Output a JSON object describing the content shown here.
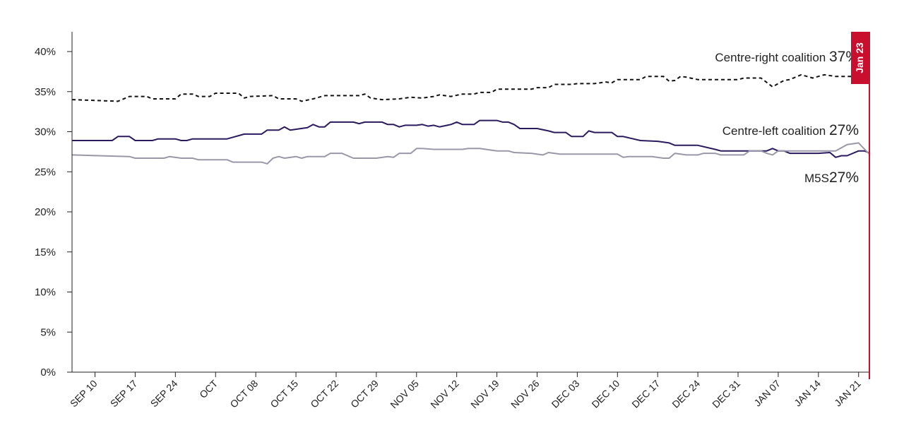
{
  "chart_data": {
    "type": "line",
    "xlabel": "",
    "ylabel": "",
    "ylim": [
      0,
      42
    ],
    "y_ticks": [
      0,
      5,
      10,
      15,
      20,
      25,
      30,
      35,
      40
    ],
    "y_tick_labels": [
      "0%",
      "5%",
      "10%",
      "15%",
      "20%",
      "25%",
      "30%",
      "35%",
      "40%"
    ],
    "x_range": [
      "2017-09-06",
      "2018-01-23"
    ],
    "x_ticks": [
      {
        "date": "2017-09-10",
        "label": "SEP 10"
      },
      {
        "date": "2017-09-17",
        "label": "SEP 17"
      },
      {
        "date": "2017-09-24",
        "label": "SEP 24"
      },
      {
        "date": "2017-10-01",
        "label": "OCT"
      },
      {
        "date": "2017-10-08",
        "label": "OCT 08"
      },
      {
        "date": "2017-10-15",
        "label": "OCT 15"
      },
      {
        "date": "2017-10-22",
        "label": "OCT 22"
      },
      {
        "date": "2017-10-29",
        "label": "OCT 29"
      },
      {
        "date": "2017-11-05",
        "label": "NOV 05"
      },
      {
        "date": "2017-11-12",
        "label": "NOV 12"
      },
      {
        "date": "2017-11-19",
        "label": "NOV 19"
      },
      {
        "date": "2017-11-26",
        "label": "NOV 26"
      },
      {
        "date": "2017-12-03",
        "label": "DEC 03"
      },
      {
        "date": "2017-12-10",
        "label": "DEC 10"
      },
      {
        "date": "2017-12-17",
        "label": "DEC 17"
      },
      {
        "date": "2017-12-24",
        "label": "DEC 24"
      },
      {
        "date": "2017-12-31",
        "label": "DEC 31"
      },
      {
        "date": "2018-01-07",
        "label": "JAN 07"
      },
      {
        "date": "2018-01-14",
        "label": "JAN 14"
      },
      {
        "date": "2018-01-21",
        "label": "JAN 21"
      }
    ],
    "marker": {
      "date": "2018-01-23",
      "label": "Jan 23",
      "color": "#c8102e"
    },
    "series": [
      {
        "name": "Centre-right coalition",
        "end_label": "37%",
        "color": "#111111",
        "style": "dashed",
        "points": [
          [
            "2017-09-06",
            34.0
          ],
          [
            "2017-09-14",
            33.8
          ],
          [
            "2017-09-16",
            34.4
          ],
          [
            "2017-09-19",
            34.4
          ],
          [
            "2017-09-20",
            34.1
          ],
          [
            "2017-09-24",
            34.1
          ],
          [
            "2017-09-25",
            34.7
          ],
          [
            "2017-09-27",
            34.7
          ],
          [
            "2017-09-28",
            34.4
          ],
          [
            "2017-09-30",
            34.4
          ],
          [
            "2017-10-01",
            34.8
          ],
          [
            "2017-10-05",
            34.8
          ],
          [
            "2017-10-06",
            34.2
          ],
          [
            "2017-10-07",
            34.4
          ],
          [
            "2017-10-11",
            34.5
          ],
          [
            "2017-10-12",
            34.1
          ],
          [
            "2017-10-15",
            34.1
          ],
          [
            "2017-10-16",
            33.8
          ],
          [
            "2017-10-18",
            34.1
          ],
          [
            "2017-10-20",
            34.5
          ],
          [
            "2017-10-26",
            34.5
          ],
          [
            "2017-10-27",
            34.7
          ],
          [
            "2017-10-28",
            34.2
          ],
          [
            "2017-10-30",
            34.0
          ],
          [
            "2017-11-02",
            34.1
          ],
          [
            "2017-11-04",
            34.3
          ],
          [
            "2017-11-06",
            34.2
          ],
          [
            "2017-11-08",
            34.4
          ],
          [
            "2017-11-09",
            34.6
          ],
          [
            "2017-11-11",
            34.4
          ],
          [
            "2017-11-13",
            34.7
          ],
          [
            "2017-11-15",
            34.7
          ],
          [
            "2017-11-16",
            34.9
          ],
          [
            "2017-11-18",
            34.9
          ],
          [
            "2017-11-19",
            35.3
          ],
          [
            "2017-11-25",
            35.3
          ],
          [
            "2017-11-26",
            35.5
          ],
          [
            "2017-11-28",
            35.5
          ],
          [
            "2017-11-29",
            35.9
          ],
          [
            "2017-12-02",
            35.9
          ],
          [
            "2017-12-03",
            36.0
          ],
          [
            "2017-12-06",
            36.0
          ],
          [
            "2017-12-08",
            36.2
          ],
          [
            "2017-12-09",
            36.1
          ],
          [
            "2017-12-10",
            36.5
          ],
          [
            "2017-12-14",
            36.5
          ],
          [
            "2017-12-15",
            36.9
          ],
          [
            "2017-12-18",
            36.9
          ],
          [
            "2017-12-19",
            36.3
          ],
          [
            "2017-12-20",
            36.4
          ],
          [
            "2017-12-21",
            36.9
          ],
          [
            "2017-12-22",
            36.8
          ],
          [
            "2017-12-24",
            36.5
          ],
          [
            "2017-12-31",
            36.5
          ],
          [
            "2018-01-01",
            36.7
          ],
          [
            "2018-01-04",
            36.7
          ],
          [
            "2018-01-06",
            35.6
          ],
          [
            "2018-01-08",
            36.4
          ],
          [
            "2018-01-09",
            36.5
          ],
          [
            "2018-01-11",
            37.1
          ],
          [
            "2018-01-13",
            36.7
          ],
          [
            "2018-01-15",
            37.1
          ],
          [
            "2018-01-17",
            36.9
          ],
          [
            "2018-01-23",
            36.9
          ]
        ]
      },
      {
        "name": "Centre-left coalition",
        "end_label": "27%",
        "color": "#2b1a5e",
        "style": "solid",
        "points": [
          [
            "2017-09-06",
            28.9
          ],
          [
            "2017-09-13",
            28.9
          ],
          [
            "2017-09-14",
            29.4
          ],
          [
            "2017-09-16",
            29.4
          ],
          [
            "2017-09-17",
            28.9
          ],
          [
            "2017-09-20",
            28.9
          ],
          [
            "2017-09-21",
            29.1
          ],
          [
            "2017-09-24",
            29.1
          ],
          [
            "2017-09-25",
            28.9
          ],
          [
            "2017-09-26",
            28.9
          ],
          [
            "2017-09-27",
            29.1
          ],
          [
            "2017-10-03",
            29.1
          ],
          [
            "2017-10-06",
            29.7
          ],
          [
            "2017-10-09",
            29.7
          ],
          [
            "2017-10-10",
            30.2
          ],
          [
            "2017-10-12",
            30.2
          ],
          [
            "2017-10-13",
            30.6
          ],
          [
            "2017-10-14",
            30.2
          ],
          [
            "2017-10-17",
            30.5
          ],
          [
            "2017-10-18",
            30.9
          ],
          [
            "2017-10-19",
            30.6
          ],
          [
            "2017-10-20",
            30.6
          ],
          [
            "2017-10-21",
            31.2
          ],
          [
            "2017-10-25",
            31.2
          ],
          [
            "2017-10-26",
            31.0
          ],
          [
            "2017-10-27",
            31.2
          ],
          [
            "2017-10-30",
            31.2
          ],
          [
            "2017-10-31",
            30.9
          ],
          [
            "2017-11-01",
            30.9
          ],
          [
            "2017-11-02",
            30.6
          ],
          [
            "2017-11-03",
            30.8
          ],
          [
            "2017-11-05",
            30.8
          ],
          [
            "2017-11-06",
            30.9
          ],
          [
            "2017-11-07",
            30.7
          ],
          [
            "2017-11-08",
            30.8
          ],
          [
            "2017-11-09",
            30.6
          ],
          [
            "2017-11-11",
            30.9
          ],
          [
            "2017-11-12",
            31.2
          ],
          [
            "2017-11-13",
            30.9
          ],
          [
            "2017-11-15",
            30.9
          ],
          [
            "2017-11-16",
            31.4
          ],
          [
            "2017-11-19",
            31.4
          ],
          [
            "2017-11-20",
            31.2
          ],
          [
            "2017-11-21",
            31.2
          ],
          [
            "2017-11-22",
            30.9
          ],
          [
            "2017-11-23",
            30.4
          ],
          [
            "2017-11-26",
            30.4
          ],
          [
            "2017-11-28",
            30.1
          ],
          [
            "2017-11-29",
            29.9
          ],
          [
            "2017-12-01",
            29.9
          ],
          [
            "2017-12-02",
            29.4
          ],
          [
            "2017-12-04",
            29.4
          ],
          [
            "2017-12-05",
            30.1
          ],
          [
            "2017-12-06",
            29.9
          ],
          [
            "2017-12-09",
            29.9
          ],
          [
            "2017-12-10",
            29.4
          ],
          [
            "2017-12-11",
            29.4
          ],
          [
            "2017-12-14",
            28.9
          ],
          [
            "2017-12-17",
            28.8
          ],
          [
            "2017-12-19",
            28.6
          ],
          [
            "2017-12-20",
            28.3
          ],
          [
            "2017-12-24",
            28.3
          ],
          [
            "2017-12-27",
            27.8
          ],
          [
            "2017-12-28",
            27.6
          ],
          [
            "2018-01-05",
            27.6
          ],
          [
            "2018-01-06",
            27.9
          ],
          [
            "2018-01-07",
            27.6
          ],
          [
            "2018-01-08",
            27.6
          ],
          [
            "2018-01-09",
            27.3
          ],
          [
            "2018-01-14",
            27.3
          ],
          [
            "2018-01-16",
            27.4
          ],
          [
            "2018-01-17",
            26.8
          ],
          [
            "2018-01-18",
            27.0
          ],
          [
            "2018-01-19",
            27.0
          ],
          [
            "2018-01-21",
            27.6
          ],
          [
            "2018-01-22",
            27.6
          ],
          [
            "2018-01-23",
            27.3
          ]
        ]
      },
      {
        "name": "M5S",
        "end_label": "27%",
        "color": "#9a98a8",
        "style": "solid",
        "points": [
          [
            "2017-09-06",
            27.1
          ],
          [
            "2017-09-16",
            26.9
          ],
          [
            "2017-09-17",
            26.7
          ],
          [
            "2017-09-22",
            26.7
          ],
          [
            "2017-09-23",
            26.9
          ],
          [
            "2017-09-25",
            26.7
          ],
          [
            "2017-09-27",
            26.7
          ],
          [
            "2017-09-28",
            26.5
          ],
          [
            "2017-10-03",
            26.5
          ],
          [
            "2017-10-04",
            26.2
          ],
          [
            "2017-10-09",
            26.2
          ],
          [
            "2017-10-10",
            26.0
          ],
          [
            "2017-10-11",
            26.7
          ],
          [
            "2017-10-12",
            26.9
          ],
          [
            "2017-10-13",
            26.7
          ],
          [
            "2017-10-15",
            26.9
          ],
          [
            "2017-10-16",
            26.7
          ],
          [
            "2017-10-17",
            26.9
          ],
          [
            "2017-10-20",
            26.9
          ],
          [
            "2017-10-21",
            27.3
          ],
          [
            "2017-10-23",
            27.3
          ],
          [
            "2017-10-25",
            26.7
          ],
          [
            "2017-10-29",
            26.7
          ],
          [
            "2017-10-31",
            26.9
          ],
          [
            "2017-11-01",
            26.8
          ],
          [
            "2017-11-02",
            27.3
          ],
          [
            "2017-11-04",
            27.3
          ],
          [
            "2017-11-05",
            27.9
          ],
          [
            "2017-11-06",
            27.9
          ],
          [
            "2017-11-08",
            27.8
          ],
          [
            "2017-11-13",
            27.8
          ],
          [
            "2017-11-14",
            27.9
          ],
          [
            "2017-11-16",
            27.9
          ],
          [
            "2017-11-19",
            27.6
          ],
          [
            "2017-11-21",
            27.6
          ],
          [
            "2017-11-22",
            27.4
          ],
          [
            "2017-11-25",
            27.3
          ],
          [
            "2017-11-27",
            27.1
          ],
          [
            "2017-11-28",
            27.4
          ],
          [
            "2017-11-30",
            27.2
          ],
          [
            "2017-12-10",
            27.2
          ],
          [
            "2017-12-11",
            26.8
          ],
          [
            "2017-12-12",
            26.9
          ],
          [
            "2017-12-16",
            26.9
          ],
          [
            "2017-12-18",
            26.7
          ],
          [
            "2017-12-19",
            26.7
          ],
          [
            "2017-12-20",
            27.3
          ],
          [
            "2017-12-22",
            27.1
          ],
          [
            "2017-12-24",
            27.1
          ],
          [
            "2017-12-25",
            27.3
          ],
          [
            "2017-12-27",
            27.3
          ],
          [
            "2017-12-28",
            27.1
          ],
          [
            "2018-01-01",
            27.1
          ],
          [
            "2018-01-02",
            27.6
          ],
          [
            "2018-01-04",
            27.6
          ],
          [
            "2018-01-05",
            27.3
          ],
          [
            "2018-01-06",
            27.1
          ],
          [
            "2018-01-07",
            27.6
          ],
          [
            "2018-01-15",
            27.6
          ],
          [
            "2018-01-17",
            27.6
          ],
          [
            "2018-01-19",
            28.4
          ],
          [
            "2018-01-21",
            28.6
          ],
          [
            "2018-01-23",
            27.1
          ]
        ]
      }
    ]
  }
}
